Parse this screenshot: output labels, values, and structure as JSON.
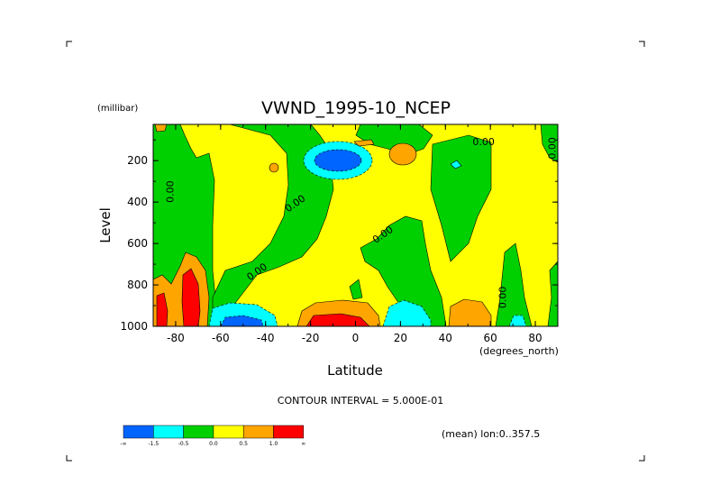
{
  "chart_data": {
    "type": "heatmap",
    "title": "VWND_1995-10_NCEP",
    "xlabel": "Latitude",
    "ylabel": "Level",
    "y_units": "(millibar)",
    "x_units": "(degrees_north)",
    "xlim": [
      -90,
      90
    ],
    "ylim": [
      1000,
      25
    ],
    "x_ticks": [
      -80,
      -60,
      -40,
      -20,
      0,
      20,
      40,
      60,
      80
    ],
    "y_ticks": [
      200,
      400,
      600,
      800,
      1000
    ],
    "contour_interval_text": "CONTOUR INTERVAL = 5.000E-01",
    "mean_note": "(mean) lon:0..357.5",
    "contour_labels": [
      {
        "text": "0.00",
        "lat": -81,
        "level": 350
      },
      {
        "text": "0.00",
        "lat": -26,
        "level": 420
      },
      {
        "text": "0.00",
        "lat": 13,
        "level": 570
      },
      {
        "text": "0.00",
        "lat": -43,
        "level": 750
      },
      {
        "text": "0.00",
        "lat": 57,
        "level": 125
      },
      {
        "text": "0.00",
        "lat": 89,
        "level": 140
      },
      {
        "text": "0.00",
        "lat": 67,
        "level": 860
      }
    ],
    "regions": [
      {
        "lat": [
          -50,
          -20,
          5
        ],
        "level": [
          125,
          400,
          780
        ],
        "value_class": "green"
      },
      {
        "lat": [
          -12,
          8
        ],
        "level": [
          150,
          215
        ],
        "value_class": "blue"
      },
      {
        "lat": [
          -78,
          -72
        ],
        "level": [
          760,
          990
        ],
        "value_class": "red"
      },
      {
        "lat": [
          -20,
          2
        ],
        "level": [
          940,
          1000
        ],
        "value_class": "red"
      },
      {
        "lat": [
          -60,
          -48
        ],
        "level": [
          950,
          1000
        ],
        "value_class": "blue"
      },
      {
        "lat": [
          45,
          60
        ],
        "level": [
          880,
          1000
        ],
        "value_class": "orange"
      },
      {
        "lat": [
          15,
          30
        ],
        "level": [
          130,
          240
        ],
        "value_class": "orange"
      }
    ]
  },
  "colorbar": {
    "colors": [
      "#0064ff",
      "#00ffff",
      "#00d000",
      "#ffff00",
      "#ffa500",
      "#ff0000"
    ],
    "labels": [
      "-∞",
      "-1.5",
      "-0.5",
      "0.0",
      "0.5",
      "1.0",
      "∞"
    ]
  },
  "colors": {
    "yellow": "#ffff00",
    "green": "#00d000",
    "cyan": "#00ffff",
    "blue": "#0064ff",
    "orange": "#ffa500",
    "red": "#ff0000"
  }
}
